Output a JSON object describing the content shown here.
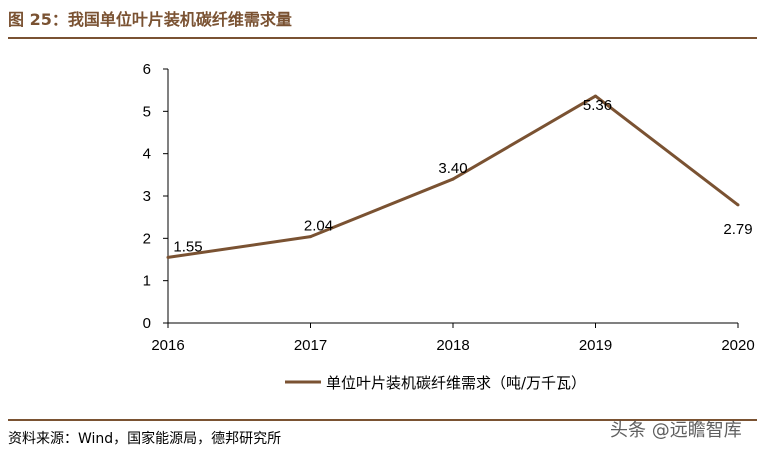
{
  "figure": {
    "title": "图 25：我国单位叶片装机碳纤维需求量",
    "source": "资料来源：Wind，国家能源局，德邦研究所",
    "watermark": "头条 @远瞻智库"
  },
  "chart_data": {
    "type": "line",
    "x": [
      "2016",
      "2017",
      "2018",
      "2019",
      "2020"
    ],
    "series": [
      {
        "name": "单位叶片装机碳纤维需求（吨/万千瓦）",
        "values": [
          1.55,
          2.04,
          3.4,
          5.36,
          2.79
        ],
        "data_labels": [
          "1.55",
          "2.04",
          "3.40",
          "5.36",
          "2.79"
        ],
        "color": "#7a5232"
      }
    ],
    "y_ticks": [
      "0",
      "1",
      "2",
      "3",
      "4",
      "5",
      "6"
    ],
    "ylim": [
      0,
      6
    ],
    "grid": false,
    "legend_position": "bottom",
    "colors": {
      "line": "#7a5232",
      "axis": "#000000",
      "rule": "#7a5232"
    }
  }
}
